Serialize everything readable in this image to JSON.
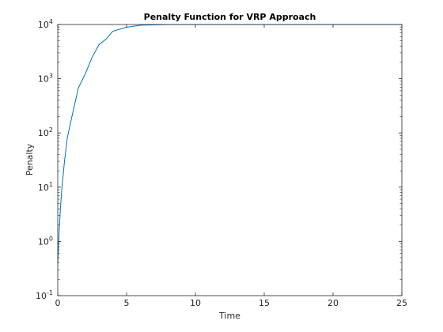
{
  "chart_data": {
    "type": "line",
    "title": "Penalty Function for VRP Approach",
    "xlabel": "Time",
    "ylabel": "Penalty",
    "xlim": [
      0,
      25
    ],
    "ylim": [
      0.1,
      10000
    ],
    "yscale": "log",
    "grid": false,
    "x_ticks": [
      0,
      5,
      10,
      15,
      20,
      25
    ],
    "x_tick_labels": [
      "0",
      "5",
      "10",
      "15",
      "20",
      "25"
    ],
    "y_ticks": [
      0.1,
      1,
      10,
      100,
      1000,
      10000
    ],
    "y_tick_labels": [
      {
        "base": "10",
        "exp": "-1"
      },
      {
        "base": "10",
        "exp": "0"
      },
      {
        "base": "10",
        "exp": "1"
      },
      {
        "base": "10",
        "exp": "2"
      },
      {
        "base": "10",
        "exp": "3"
      },
      {
        "base": "10",
        "exp": "4"
      }
    ],
    "series": [
      {
        "color": "#0072BD",
        "x": [
          0,
          0.1,
          0.2,
          0.3,
          0.5,
          0.7,
          1.0,
          1.5,
          2.0,
          2.5,
          3.0,
          3.5,
          4.0,
          5.0,
          6.0,
          8.0,
          10.0,
          15.0,
          20.0,
          25.0
        ],
        "y": [
          0.4,
          1.5,
          4.3,
          9.6,
          32,
          83,
          186,
          680,
          1230,
          2500,
          4250,
          5360,
          7500,
          8900,
          9700,
          10000,
          10000,
          10000,
          10000,
          10000
        ]
      }
    ]
  }
}
